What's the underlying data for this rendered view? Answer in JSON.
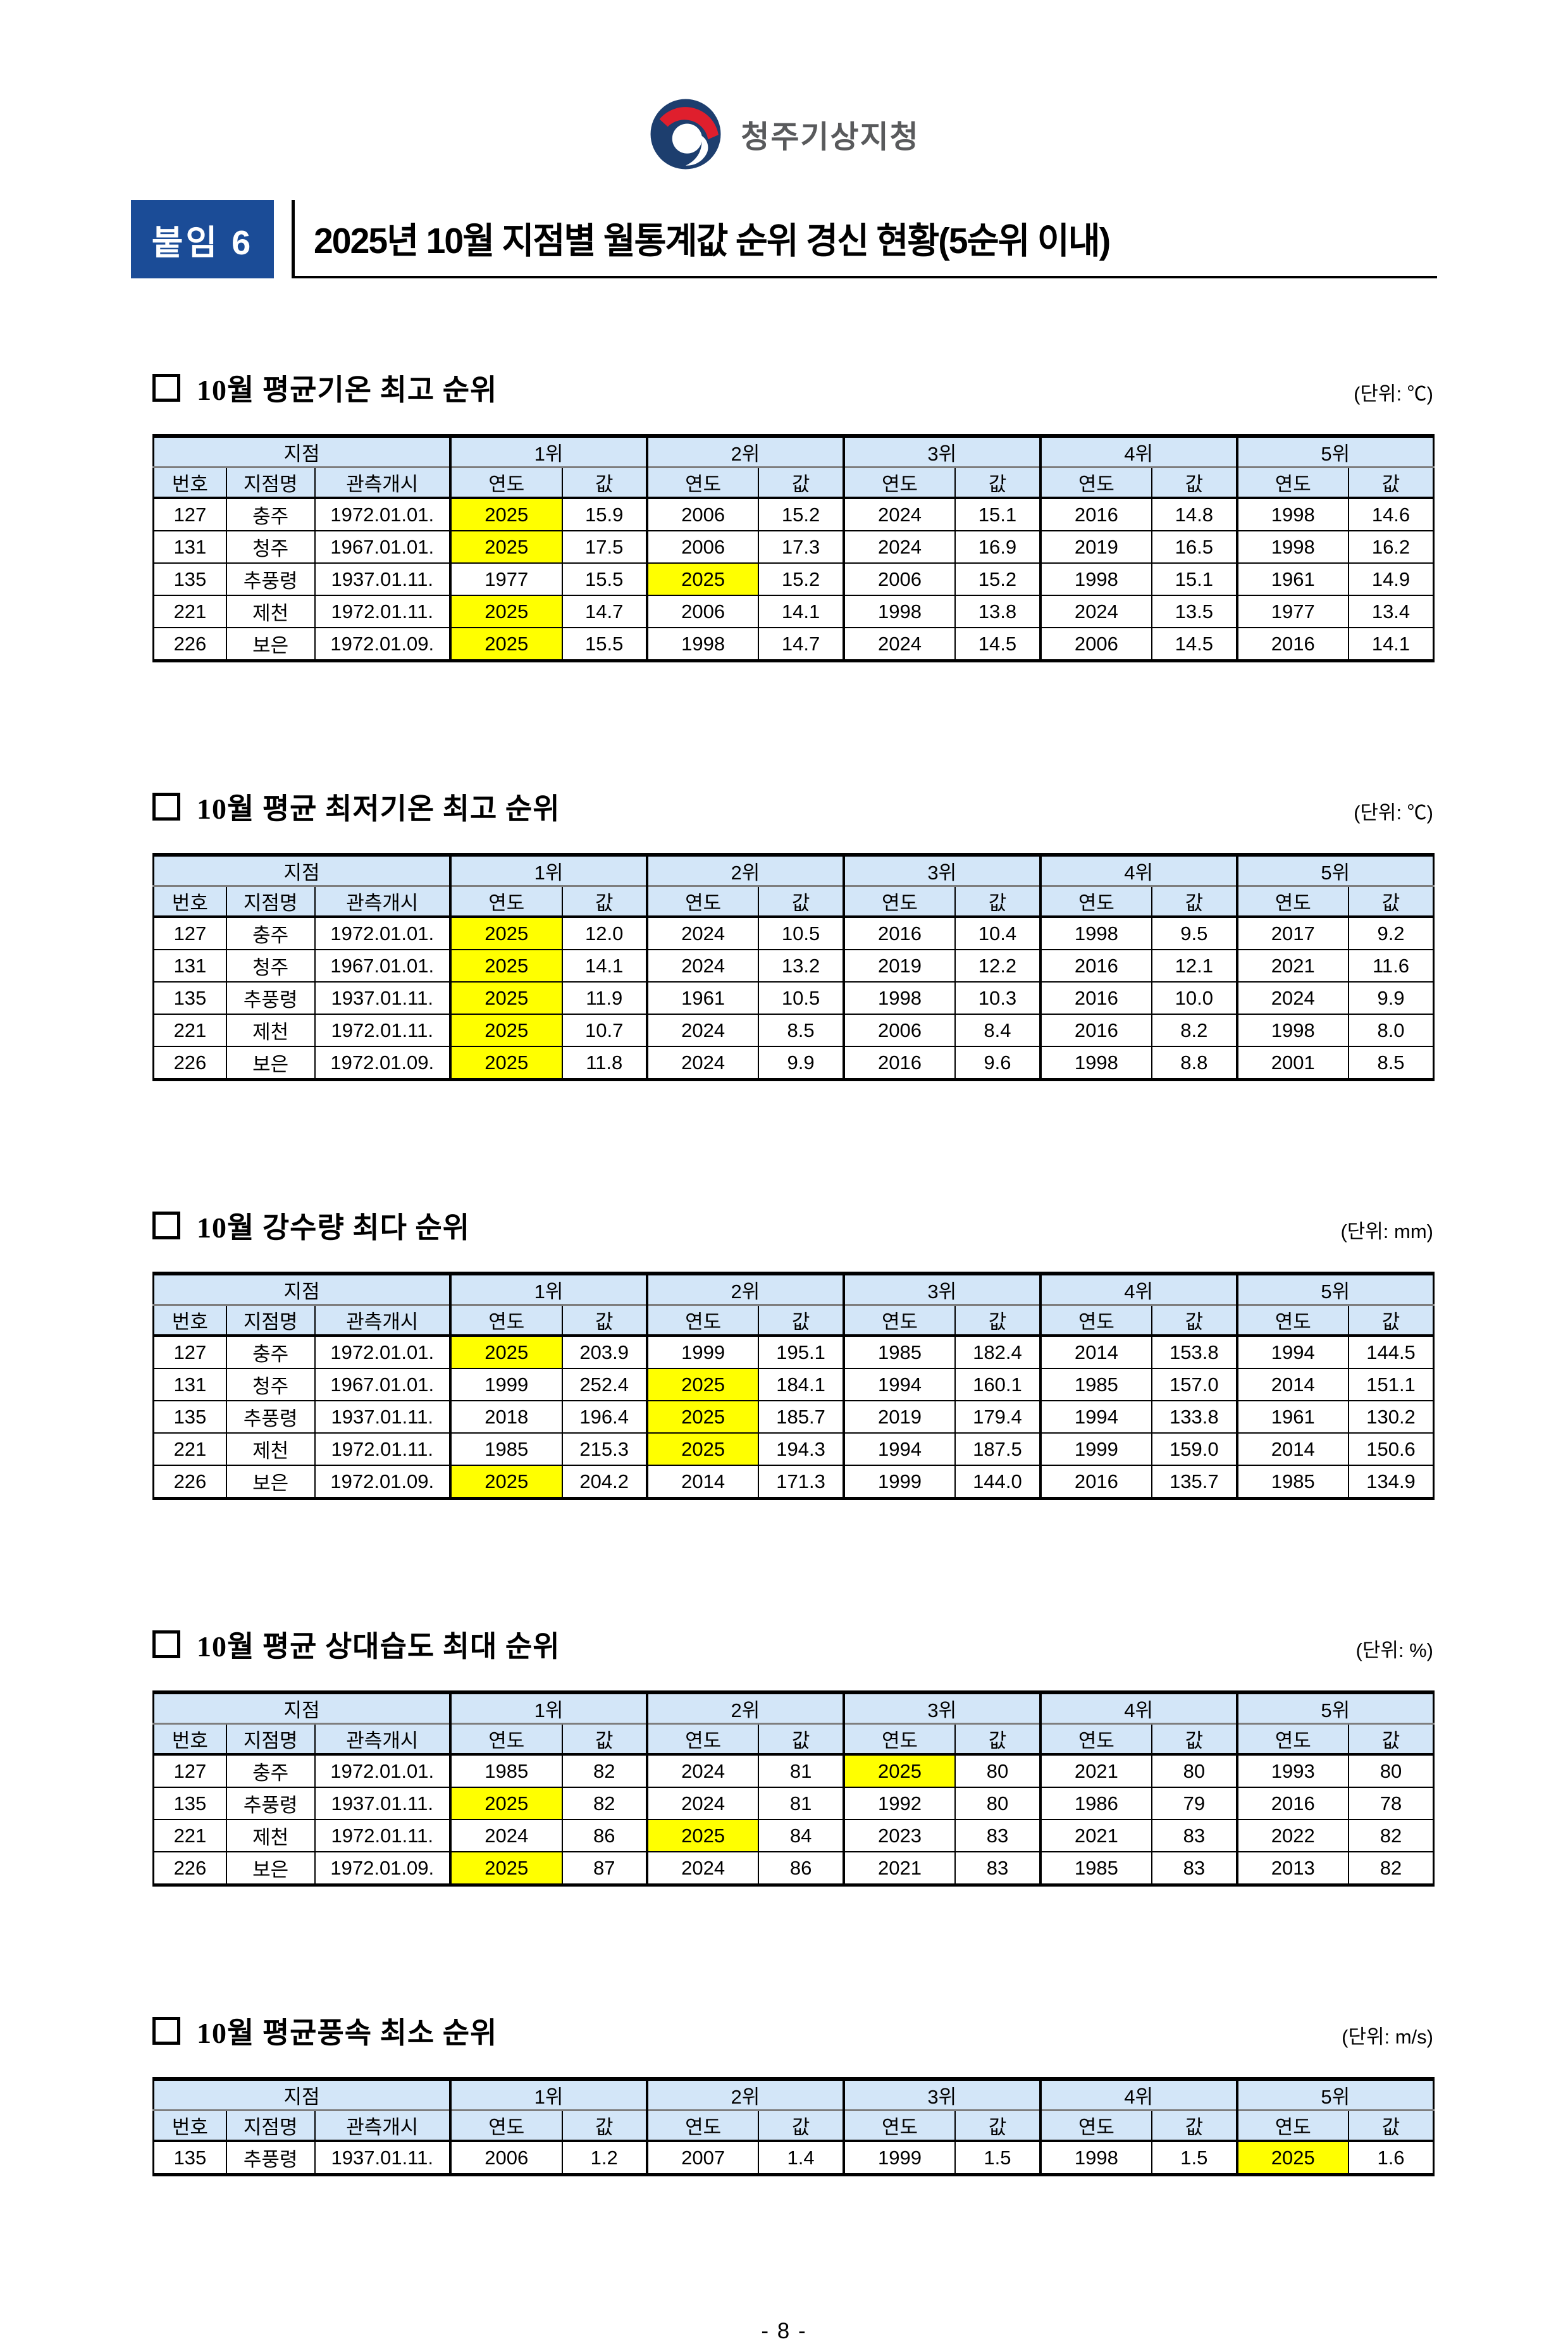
{
  "logo": {
    "agency": "청주기상지청"
  },
  "header": {
    "badge": "붙임 6",
    "title": "2025년 10월 지점별 월통계값 순위 경신 현황(5순위 이내)"
  },
  "table_headers": {
    "station_group": "지점",
    "station_cols": [
      "번호",
      "지점명",
      "관측개시"
    ],
    "rank_labels": [
      "1위",
      "2위",
      "3위",
      "4위",
      "5위"
    ],
    "rank_cols": [
      "연도",
      "값"
    ]
  },
  "colors": {
    "badge_blue": "#1b4c97",
    "table_header_blue": "#d3e6f8",
    "highlight_yellow": "#ffff00",
    "emblem_navy": "#1d3e6e",
    "emblem_red": "#df1f2d"
  },
  "sections": [
    {
      "title": "10월 평균기온 최고 순위",
      "unit": "(단위: ℃)",
      "rows": [
        {
          "no": "127",
          "name": "충주",
          "start": "1972.01.01.",
          "ranks": [
            {
              "year": "2025",
              "value": "15.9",
              "hl": true
            },
            {
              "year": "2006",
              "value": "15.2",
              "hl": false
            },
            {
              "year": "2024",
              "value": "15.1",
              "hl": false
            },
            {
              "year": "2016",
              "value": "14.8",
              "hl": false
            },
            {
              "year": "1998",
              "value": "14.6",
              "hl": false
            }
          ]
        },
        {
          "no": "131",
          "name": "청주",
          "start": "1967.01.01.",
          "ranks": [
            {
              "year": "2025",
              "value": "17.5",
              "hl": true
            },
            {
              "year": "2006",
              "value": "17.3",
              "hl": false
            },
            {
              "year": "2024",
              "value": "16.9",
              "hl": false
            },
            {
              "year": "2019",
              "value": "16.5",
              "hl": false
            },
            {
              "year": "1998",
              "value": "16.2",
              "hl": false
            }
          ]
        },
        {
          "no": "135",
          "name": "추풍령",
          "start": "1937.01.11.",
          "ranks": [
            {
              "year": "1977",
              "value": "15.5",
              "hl": false
            },
            {
              "year": "2025",
              "value": "15.2",
              "hl": true
            },
            {
              "year": "2006",
              "value": "15.2",
              "hl": false
            },
            {
              "year": "1998",
              "value": "15.1",
              "hl": false
            },
            {
              "year": "1961",
              "value": "14.9",
              "hl": false
            }
          ]
        },
        {
          "no": "221",
          "name": "제천",
          "start": "1972.01.11.",
          "ranks": [
            {
              "year": "2025",
              "value": "14.7",
              "hl": true
            },
            {
              "year": "2006",
              "value": "14.1",
              "hl": false
            },
            {
              "year": "1998",
              "value": "13.8",
              "hl": false
            },
            {
              "year": "2024",
              "value": "13.5",
              "hl": false
            },
            {
              "year": "1977",
              "value": "13.4",
              "hl": false
            }
          ]
        },
        {
          "no": "226",
          "name": "보은",
          "start": "1972.01.09.",
          "ranks": [
            {
              "year": "2025",
              "value": "15.5",
              "hl": true
            },
            {
              "year": "1998",
              "value": "14.7",
              "hl": false
            },
            {
              "year": "2024",
              "value": "14.5",
              "hl": false
            },
            {
              "year": "2006",
              "value": "14.5",
              "hl": false
            },
            {
              "year": "2016",
              "value": "14.1",
              "hl": false
            }
          ]
        }
      ]
    },
    {
      "title": "10월 평균 최저기온 최고 순위",
      "unit": "(단위: ℃)",
      "rows": [
        {
          "no": "127",
          "name": "충주",
          "start": "1972.01.01.",
          "ranks": [
            {
              "year": "2025",
              "value": "12.0",
              "hl": true
            },
            {
              "year": "2024",
              "value": "10.5",
              "hl": false
            },
            {
              "year": "2016",
              "value": "10.4",
              "hl": false
            },
            {
              "year": "1998",
              "value": "9.5",
              "hl": false
            },
            {
              "year": "2017",
              "value": "9.2",
              "hl": false
            }
          ]
        },
        {
          "no": "131",
          "name": "청주",
          "start": "1967.01.01.",
          "ranks": [
            {
              "year": "2025",
              "value": "14.1",
              "hl": true
            },
            {
              "year": "2024",
              "value": "13.2",
              "hl": false
            },
            {
              "year": "2019",
              "value": "12.2",
              "hl": false
            },
            {
              "year": "2016",
              "value": "12.1",
              "hl": false
            },
            {
              "year": "2021",
              "value": "11.6",
              "hl": false
            }
          ]
        },
        {
          "no": "135",
          "name": "추풍령",
          "start": "1937.01.11.",
          "ranks": [
            {
              "year": "2025",
              "value": "11.9",
              "hl": true
            },
            {
              "year": "1961",
              "value": "10.5",
              "hl": false
            },
            {
              "year": "1998",
              "value": "10.3",
              "hl": false
            },
            {
              "year": "2016",
              "value": "10.0",
              "hl": false
            },
            {
              "year": "2024",
              "value": "9.9",
              "hl": false
            }
          ]
        },
        {
          "no": "221",
          "name": "제천",
          "start": "1972.01.11.",
          "ranks": [
            {
              "year": "2025",
              "value": "10.7",
              "hl": true
            },
            {
              "year": "2024",
              "value": "8.5",
              "hl": false
            },
            {
              "year": "2006",
              "value": "8.4",
              "hl": false
            },
            {
              "year": "2016",
              "value": "8.2",
              "hl": false
            },
            {
              "year": "1998",
              "value": "8.0",
              "hl": false
            }
          ]
        },
        {
          "no": "226",
          "name": "보은",
          "start": "1972.01.09.",
          "ranks": [
            {
              "year": "2025",
              "value": "11.8",
              "hl": true
            },
            {
              "year": "2024",
              "value": "9.9",
              "hl": false
            },
            {
              "year": "2016",
              "value": "9.6",
              "hl": false
            },
            {
              "year": "1998",
              "value": "8.8",
              "hl": false
            },
            {
              "year": "2001",
              "value": "8.5",
              "hl": false
            }
          ]
        }
      ]
    },
    {
      "title": "10월 강수량 최다 순위",
      "unit": "(단위: mm)",
      "rows": [
        {
          "no": "127",
          "name": "충주",
          "start": "1972.01.01.",
          "ranks": [
            {
              "year": "2025",
              "value": "203.9",
              "hl": true
            },
            {
              "year": "1999",
              "value": "195.1",
              "hl": false
            },
            {
              "year": "1985",
              "value": "182.4",
              "hl": false
            },
            {
              "year": "2014",
              "value": "153.8",
              "hl": false
            },
            {
              "year": "1994",
              "value": "144.5",
              "hl": false
            }
          ]
        },
        {
          "no": "131",
          "name": "청주",
          "start": "1967.01.01.",
          "ranks": [
            {
              "year": "1999",
              "value": "252.4",
              "hl": false
            },
            {
              "year": "2025",
              "value": "184.1",
              "hl": true
            },
            {
              "year": "1994",
              "value": "160.1",
              "hl": false
            },
            {
              "year": "1985",
              "value": "157.0",
              "hl": false
            },
            {
              "year": "2014",
              "value": "151.1",
              "hl": false
            }
          ]
        },
        {
          "no": "135",
          "name": "추풍령",
          "start": "1937.01.11.",
          "ranks": [
            {
              "year": "2018",
              "value": "196.4",
              "hl": false
            },
            {
              "year": "2025",
              "value": "185.7",
              "hl": true
            },
            {
              "year": "2019",
              "value": "179.4",
              "hl": false
            },
            {
              "year": "1994",
              "value": "133.8",
              "hl": false
            },
            {
              "year": "1961",
              "value": "130.2",
              "hl": false
            }
          ]
        },
        {
          "no": "221",
          "name": "제천",
          "start": "1972.01.11.",
          "ranks": [
            {
              "year": "1985",
              "value": "215.3",
              "hl": false
            },
            {
              "year": "2025",
              "value": "194.3",
              "hl": true
            },
            {
              "year": "1994",
              "value": "187.5",
              "hl": false
            },
            {
              "year": "1999",
              "value": "159.0",
              "hl": false
            },
            {
              "year": "2014",
              "value": "150.6",
              "hl": false
            }
          ]
        },
        {
          "no": "226",
          "name": "보은",
          "start": "1972.01.09.",
          "ranks": [
            {
              "year": "2025",
              "value": "204.2",
              "hl": true
            },
            {
              "year": "2014",
              "value": "171.3",
              "hl": false
            },
            {
              "year": "1999",
              "value": "144.0",
              "hl": false
            },
            {
              "year": "2016",
              "value": "135.7",
              "hl": false
            },
            {
              "year": "1985",
              "value": "134.9",
              "hl": false
            }
          ]
        }
      ]
    },
    {
      "title": "10월 평균 상대습도 최대 순위",
      "unit": "(단위: %)",
      "rows": [
        {
          "no": "127",
          "name": "충주",
          "start": "1972.01.01.",
          "ranks": [
            {
              "year": "1985",
              "value": "82",
              "hl": false
            },
            {
              "year": "2024",
              "value": "81",
              "hl": false
            },
            {
              "year": "2025",
              "value": "80",
              "hl": true
            },
            {
              "year": "2021",
              "value": "80",
              "hl": false
            },
            {
              "year": "1993",
              "value": "80",
              "hl": false
            }
          ]
        },
        {
          "no": "135",
          "name": "추풍령",
          "start": "1937.01.11.",
          "ranks": [
            {
              "year": "2025",
              "value": "82",
              "hl": true
            },
            {
              "year": "2024",
              "value": "81",
              "hl": false
            },
            {
              "year": "1992",
              "value": "80",
              "hl": false
            },
            {
              "year": "1986",
              "value": "79",
              "hl": false
            },
            {
              "year": "2016",
              "value": "78",
              "hl": false
            }
          ]
        },
        {
          "no": "221",
          "name": "제천",
          "start": "1972.01.11.",
          "ranks": [
            {
              "year": "2024",
              "value": "86",
              "hl": false
            },
            {
              "year": "2025",
              "value": "84",
              "hl": true
            },
            {
              "year": "2023",
              "value": "83",
              "hl": false
            },
            {
              "year": "2021",
              "value": "83",
              "hl": false
            },
            {
              "year": "2022",
              "value": "82",
              "hl": false
            }
          ]
        },
        {
          "no": "226",
          "name": "보은",
          "start": "1972.01.09.",
          "ranks": [
            {
              "year": "2025",
              "value": "87",
              "hl": true
            },
            {
              "year": "2024",
              "value": "86",
              "hl": false
            },
            {
              "year": "2021",
              "value": "83",
              "hl": false
            },
            {
              "year": "1985",
              "value": "83",
              "hl": false
            },
            {
              "year": "2013",
              "value": "82",
              "hl": false
            }
          ]
        }
      ]
    },
    {
      "title": "10월 평균풍속 최소 순위",
      "unit": "(단위: m/s)",
      "rows": [
        {
          "no": "135",
          "name": "추풍령",
          "start": "1937.01.11.",
          "ranks": [
            {
              "year": "2006",
              "value": "1.2",
              "hl": false
            },
            {
              "year": "2007",
              "value": "1.4",
              "hl": false
            },
            {
              "year": "1999",
              "value": "1.5",
              "hl": false
            },
            {
              "year": "1998",
              "value": "1.5",
              "hl": false
            },
            {
              "year": "2025",
              "value": "1.6",
              "hl": true
            }
          ]
        }
      ]
    }
  ],
  "page_number": "- 8 -"
}
